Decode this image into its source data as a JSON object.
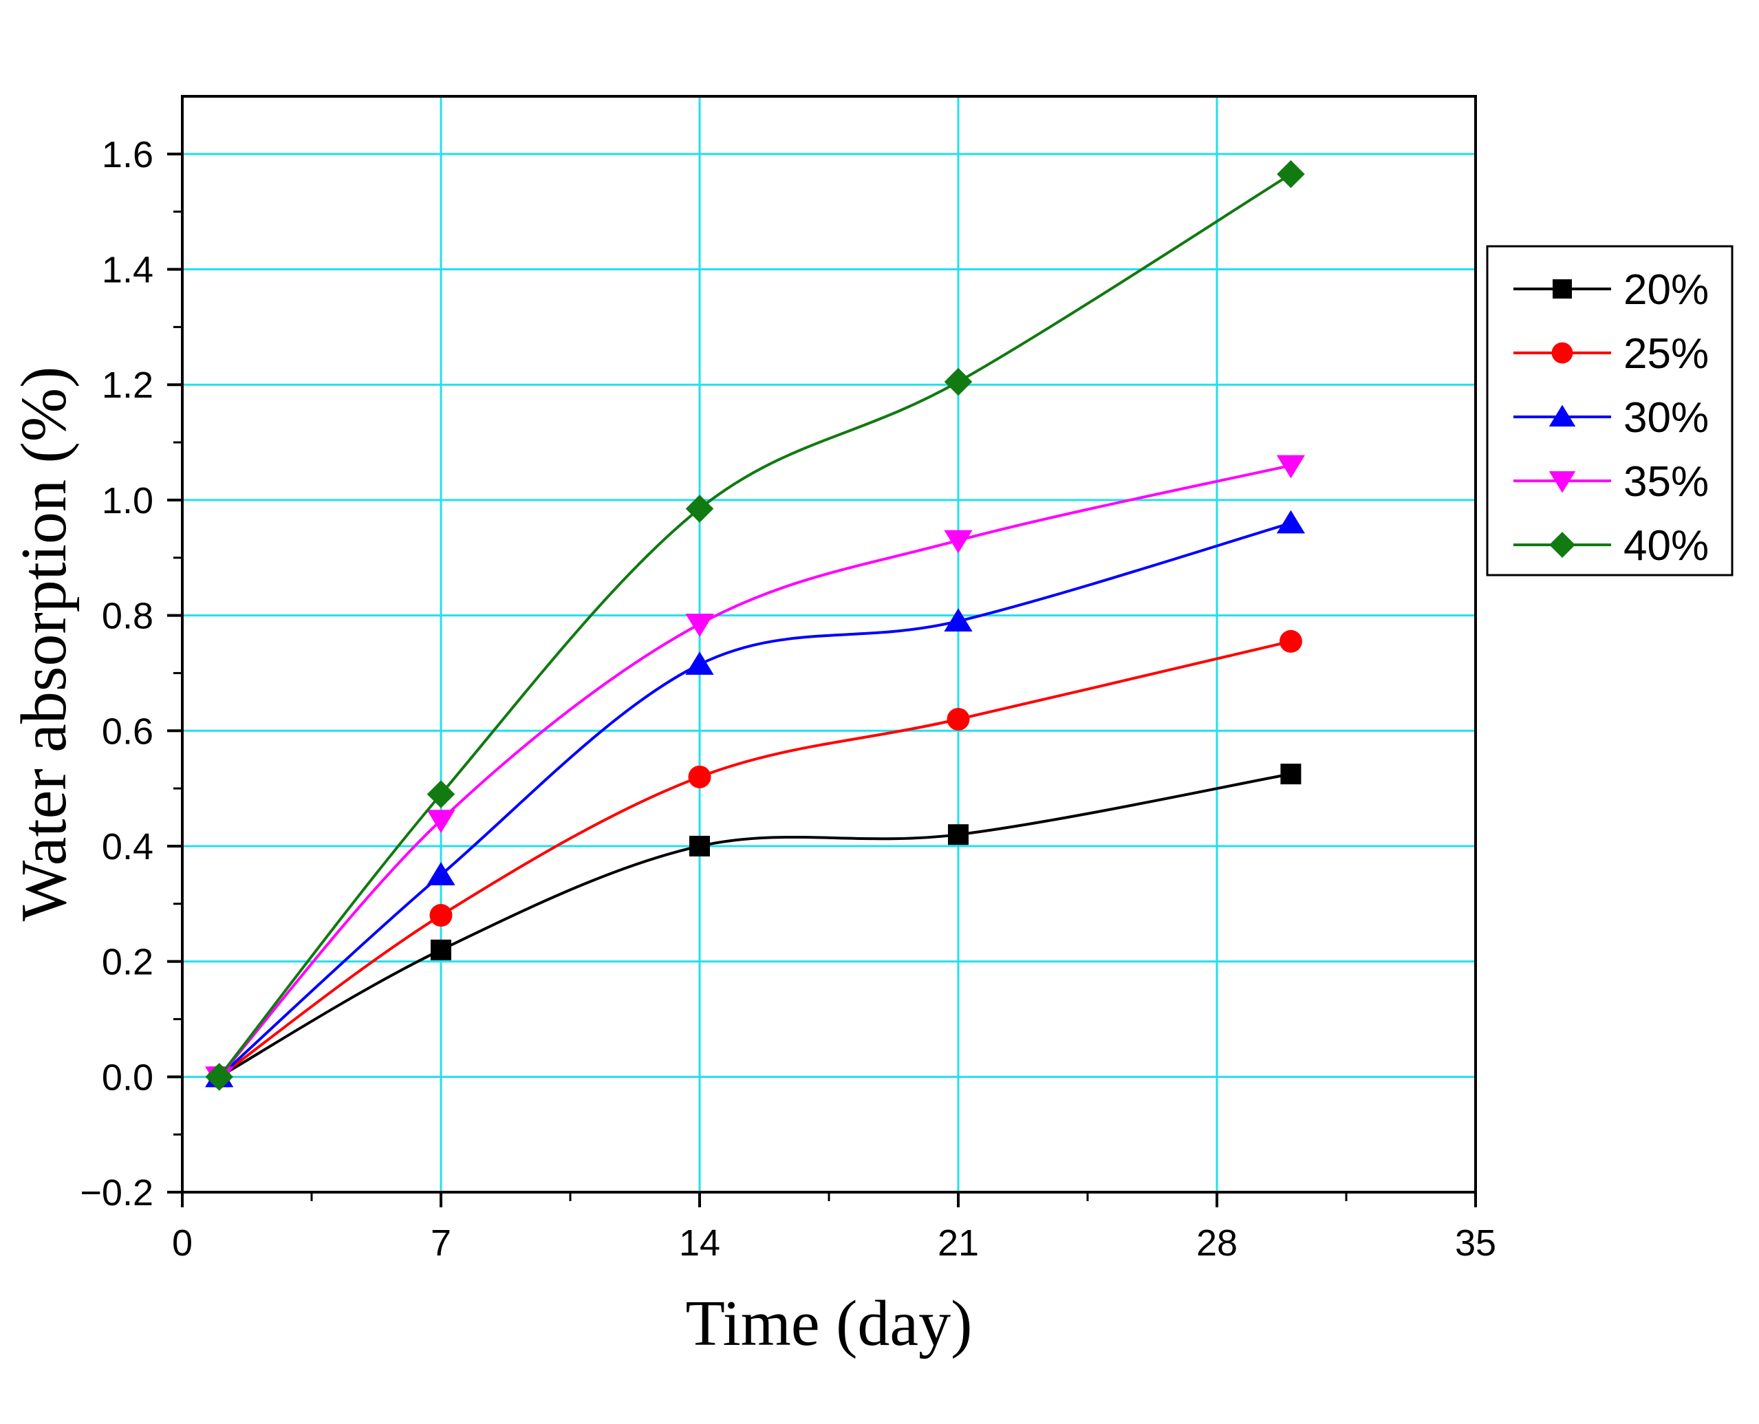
{
  "chart_data": {
    "type": "line",
    "title": "",
    "xlabel": "Time (day)",
    "ylabel": "Water absorption (%)",
    "xlim": [
      0,
      35
    ],
    "ylim": [
      -0.2,
      1.7
    ],
    "xticks": [
      0,
      7,
      14,
      21,
      28,
      35
    ],
    "xtick_labels": [
      "0",
      "7",
      "14",
      "21",
      "28",
      "35"
    ],
    "yticks": [
      -0.2,
      0.0,
      0.2,
      0.4,
      0.6,
      0.8,
      1.0,
      1.2,
      1.4,
      1.6
    ],
    "ytick_labels": [
      "−0.2",
      "0.0",
      "0.2",
      "0.4",
      "0.6",
      "0.8",
      "1.0",
      "1.2",
      "1.4",
      "1.6"
    ],
    "grid": true,
    "grid_color": "#22e0ec",
    "legend_position": "right",
    "x": [
      1,
      7,
      14,
      21,
      30
    ],
    "series": [
      {
        "name": "20%",
        "color": "#000000",
        "marker": "square",
        "values": [
          0.0,
          0.22,
          0.4,
          0.42,
          0.525
        ]
      },
      {
        "name": "25%",
        "color": "#ff0000",
        "marker": "circle",
        "values": [
          0.0,
          0.28,
          0.52,
          0.62,
          0.755
        ]
      },
      {
        "name": "30%",
        "color": "#0000ff",
        "marker": "triangle-up",
        "values": [
          0.0,
          0.35,
          0.715,
          0.79,
          0.96
        ]
      },
      {
        "name": "35%",
        "color": "#ff00ff",
        "marker": "triangle-down",
        "values": [
          0.0,
          0.445,
          0.785,
          0.93,
          1.06
        ]
      },
      {
        "name": "40%",
        "color": "#117a11",
        "marker": "diamond",
        "values": [
          0.0,
          0.49,
          0.985,
          1.205,
          1.565
        ]
      }
    ]
  }
}
